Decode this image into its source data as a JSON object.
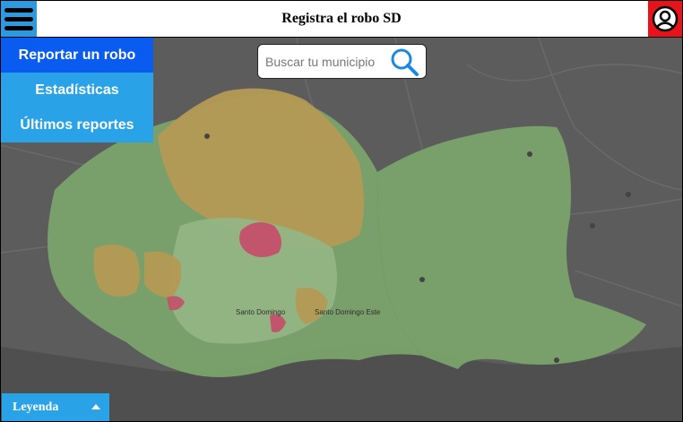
{
  "header": {
    "title": "Registra el robo SD"
  },
  "nav": {
    "items": [
      {
        "label": "Reportar un robo",
        "active": true
      },
      {
        "label": "Estadísticas",
        "active": false
      },
      {
        "label": "Últimos reportes",
        "active": false
      }
    ]
  },
  "search": {
    "placeholder": "Buscar tu municipio"
  },
  "map": {
    "labels": [
      "Santo Domingo",
      "Santo Domingo Este"
    ],
    "zone_colors": {
      "low": "#7aa36b",
      "medium": "#b49a54",
      "high": "#c4506a"
    }
  },
  "legend": {
    "label": "Leyenda"
  },
  "colors": {
    "accent": "#2aa2e8",
    "active": "#0a5cf0",
    "user_button": "#e8121b"
  }
}
